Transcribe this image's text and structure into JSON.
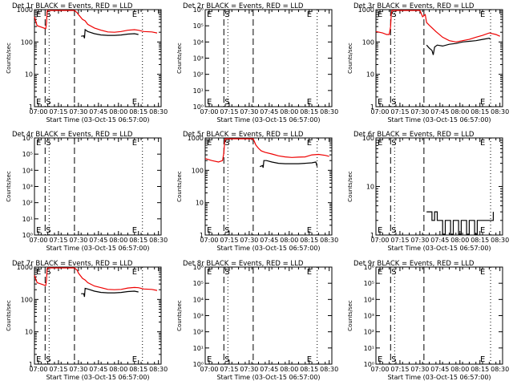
{
  "figure": {
    "colors": {
      "events": "#000000",
      "lld": "#ee0000",
      "axis": "#000000",
      "background": "#ffffff"
    },
    "x_tick_labels": [
      "07:00",
      "07:15",
      "07:30",
      "07:45",
      "08:00",
      "08:15",
      "08:30"
    ],
    "markers": {
      "start_label": "S",
      "end_label": "E"
    }
  },
  "chart_data": [
    {
      "type": "line",
      "title": "Det 1r BLACK = Events, RED = LLD",
      "xlabel": "Start Time (03-Oct-15 06:57:00)",
      "ylabel": "Counts/sec",
      "xlim_min": [
        0,
        95
      ],
      "log_y": true,
      "ylim": [
        1,
        1000
      ],
      "y_tick_labels": [
        "1",
        "10",
        "100",
        "1000"
      ],
      "s_min": 8,
      "e_min": 78,
      "dashed_min": [
        8,
        30
      ],
      "dotted_min": [
        11,
        81
      ],
      "series": [
        {
          "name": "LLD",
          "x_min": [
            0,
            2,
            6,
            8,
            8.5,
            9,
            9.5,
            10,
            10.5,
            11,
            14,
            30,
            32,
            33,
            36,
            38,
            40,
            45,
            50,
            55,
            60,
            65,
            70,
            75,
            78,
            82,
            88,
            92
          ],
          "y": [
            600,
            320,
            280,
            260,
            260,
            380,
            900,
            1100,
            1200,
            1200,
            1200,
            1200,
            800,
            700,
            500,
            450,
            350,
            270,
            230,
            205,
            200,
            210,
            230,
            240,
            230,
            210,
            205,
            190
          ]
        },
        {
          "name": "Events",
          "x_min": [
            35,
            37,
            37.5,
            38,
            40,
            45,
            50,
            55,
            60,
            65,
            70,
            75,
            78
          ],
          "y": [
            150,
            155,
            130,
            240,
            210,
            180,
            165,
            160,
            160,
            165,
            175,
            180,
            170
          ]
        }
      ]
    },
    {
      "type": "line",
      "title": "Det 2r BLACK = Events, RED = LLD",
      "xlabel": "Start Time (03-Oct-15 06:57:00)",
      "ylabel": "Counts/sec",
      "xlim_min": [
        0,
        95
      ],
      "log_y": true,
      "ylim": [
        1,
        1000000
      ],
      "y_tick_labels": [
        "10⁰",
        "10¹",
        "10²",
        "10³",
        "10⁴",
        "10⁵",
        "10⁶"
      ],
      "s_min": 14,
      "e_min": 81,
      "dashed_min": [
        14,
        36
      ],
      "dotted_min": [
        17,
        84
      ],
      "series": []
    },
    {
      "type": "line",
      "title": "Det 3r BLACK = Events, RED = LLD",
      "xlabel": "Start Time (03-Oct-15 06:57:00)",
      "ylabel": "Counts/sec",
      "xlim_min": [
        0,
        95
      ],
      "log_y": true,
      "ylim": [
        1,
        1000
      ],
      "y_tick_labels": [
        "1",
        "10",
        "100",
        "1000"
      ],
      "s_min": 11,
      "e_min": 83,
      "dashed_min": [
        11,
        36
      ],
      "dotted_min": [
        14,
        86
      ],
      "series": [
        {
          "name": "LLD",
          "x_min": [
            0,
            5,
            8,
            10,
            11,
            11.5,
            12,
            12.5,
            13,
            14,
            33,
            35,
            37,
            38,
            40,
            45,
            50,
            55,
            60,
            65,
            70,
            75,
            80,
            85,
            90,
            93
          ],
          "y": [
            210,
            190,
            170,
            170,
            300,
            700,
            1000,
            1100,
            1200,
            1200,
            1200,
            600,
            700,
            400,
            330,
            210,
            140,
            110,
            100,
            110,
            120,
            140,
            160,
            190,
            170,
            150
          ]
        },
        {
          "name": "Events",
          "x_min": [
            38,
            40,
            42,
            43,
            44,
            46,
            50,
            55,
            60,
            65,
            70,
            75,
            80,
            85,
            86
          ],
          "y": [
            80,
            65,
            55,
            40,
            70,
            80,
            75,
            85,
            90,
            100,
            105,
            110,
            120,
            130,
            120
          ]
        }
      ]
    },
    {
      "type": "line",
      "title": "Det 4r BLACK = Events, RED = LLD",
      "xlabel": "Start Time (03-Oct-15 06:57:00)",
      "ylabel": "Counts/sec",
      "xlim_min": [
        0,
        95
      ],
      "log_y": true,
      "ylim": [
        1,
        1000000
      ],
      "y_tick_labels": [
        "10⁰",
        "10¹",
        "10²",
        "10³",
        "10⁴",
        "10⁵",
        "10⁶"
      ],
      "s_min": 8,
      "e_min": 78,
      "dashed_min": [
        8,
        30
      ],
      "dotted_min": [
        11,
        81
      ],
      "series": []
    },
    {
      "type": "line",
      "title": "Det 5r BLACK = Events, RED = LLD",
      "xlabel": "Start Time (03-Oct-15 06:57:00)",
      "ylabel": "Counts/sec",
      "xlim_min": [
        0,
        95
      ],
      "log_y": true,
      "ylim": [
        1,
        1000
      ],
      "y_tick_labels": [
        "1",
        "10",
        "100",
        "1000"
      ],
      "s_min": 14,
      "e_min": 81,
      "dashed_min": [
        14,
        36
      ],
      "dotted_min": [
        17,
        84
      ],
      "series": [
        {
          "name": "LLD",
          "x_min": [
            0,
            5,
            10,
            13,
            14,
            14.5,
            15,
            16,
            17,
            20,
            36,
            38,
            40,
            42,
            45,
            50,
            55,
            60,
            65,
            70,
            75,
            80,
            85,
            90,
            93
          ],
          "y": [
            230,
            200,
            180,
            200,
            350,
            700,
            1000,
            1100,
            1200,
            1200,
            1200,
            600,
            480,
            400,
            360,
            320,
            280,
            260,
            250,
            255,
            260,
            300,
            310,
            290,
            270
          ]
        },
        {
          "name": "Events",
          "x_min": [
            41,
            43,
            43.5,
            44,
            46,
            50,
            55,
            60,
            65,
            70,
            75,
            80,
            83,
            84
          ],
          "y": [
            130,
            140,
            120,
            200,
            200,
            180,
            165,
            160,
            160,
            160,
            165,
            170,
            180,
            130
          ]
        }
      ]
    },
    {
      "type": "line",
      "title": "Det 6r BLACK = Events, RED = LLD",
      "xlabel": "Start Time (03-Oct-15 06:57:00)",
      "ylabel": "Counts/sec",
      "xlim_min": [
        0,
        95
      ],
      "log_y": true,
      "ylim": [
        1,
        100
      ],
      "y_tick_labels": [
        "1",
        "10",
        "100"
      ],
      "s_min": 11,
      "e_min": 83,
      "dashed_min": [
        11,
        36
      ],
      "dotted_min": [
        14,
        86
      ],
      "series": [
        {
          "name": "Events",
          "x_min": [
            38,
            40,
            42,
            44,
            46,
            48,
            50,
            52,
            54,
            56,
            58,
            60,
            62,
            64,
            66,
            68,
            70,
            72,
            74,
            76,
            78,
            80,
            82,
            84,
            86,
            88
          ],
          "y": [
            3,
            3,
            2,
            3,
            2,
            2,
            1,
            2,
            2,
            1,
            2,
            2,
            1,
            2,
            2,
            1,
            2,
            2,
            1,
            2,
            2,
            2,
            2,
            2,
            2,
            3
          ]
        }
      ]
    },
    {
      "type": "line",
      "title": "Det 7r BLACK = Events, RED = LLD",
      "xlabel": "Start Time (03-Oct-15 06:57:00)",
      "ylabel": "Counts/sec",
      "xlim_min": [
        0,
        95
      ],
      "log_y": true,
      "ylim": [
        1,
        1000
      ],
      "y_tick_labels": [
        "1",
        "10",
        "100",
        "1000"
      ],
      "s_min": 8,
      "e_min": 78,
      "dashed_min": [
        8,
        30
      ],
      "dotted_min": [
        11,
        81
      ],
      "series": [
        {
          "name": "LLD",
          "x_min": [
            0,
            2,
            6,
            8,
            8.5,
            9,
            9.5,
            10,
            10.5,
            11,
            14,
            30,
            32,
            33,
            36,
            38,
            40,
            45,
            50,
            55,
            60,
            65,
            70,
            75,
            78,
            82,
            88,
            92
          ],
          "y": [
            560,
            330,
            290,
            270,
            270,
            400,
            900,
            1100,
            1200,
            1200,
            1200,
            1200,
            800,
            650,
            450,
            400,
            330,
            260,
            230,
            205,
            200,
            205,
            225,
            235,
            230,
            210,
            205,
            190
          ]
        },
        {
          "name": "Events",
          "x_min": [
            35,
            37,
            37.5,
            38,
            40,
            45,
            50,
            55,
            60,
            65,
            70,
            75,
            78
          ],
          "y": [
            150,
            150,
            120,
            220,
            210,
            180,
            165,
            160,
            160,
            165,
            175,
            180,
            170
          ]
        }
      ]
    },
    {
      "type": "line",
      "title": "Det 8r BLACK = Events, RED = LLD",
      "xlabel": "Start Time (03-Oct-15 06:57:00)",
      "ylabel": "Counts/sec",
      "xlim_min": [
        0,
        95
      ],
      "log_y": true,
      "ylim": [
        1,
        1000000
      ],
      "y_tick_labels": [
        "10⁰",
        "10¹",
        "10²",
        "10³",
        "10⁴",
        "10⁵",
        "10⁶"
      ],
      "s_min": 14,
      "e_min": 81,
      "dashed_min": [
        14,
        36
      ],
      "dotted_min": [
        17,
        84
      ],
      "series": []
    },
    {
      "type": "line",
      "title": "Det 9r BLACK = Events, RED = LLD",
      "xlabel": "Start Time (03-Oct-15 06:57:00)",
      "ylabel": "Counts/sec",
      "xlim_min": [
        0,
        95
      ],
      "log_y": true,
      "ylim": [
        1,
        1000000
      ],
      "y_tick_labels": [
        "10⁰",
        "10¹",
        "10²",
        "10³",
        "10⁴",
        "10⁵",
        "10⁶"
      ],
      "s_min": 11,
      "e_min": 83,
      "dashed_min": [
        11,
        36
      ],
      "dotted_min": [
        14,
        86
      ],
      "series": []
    }
  ]
}
